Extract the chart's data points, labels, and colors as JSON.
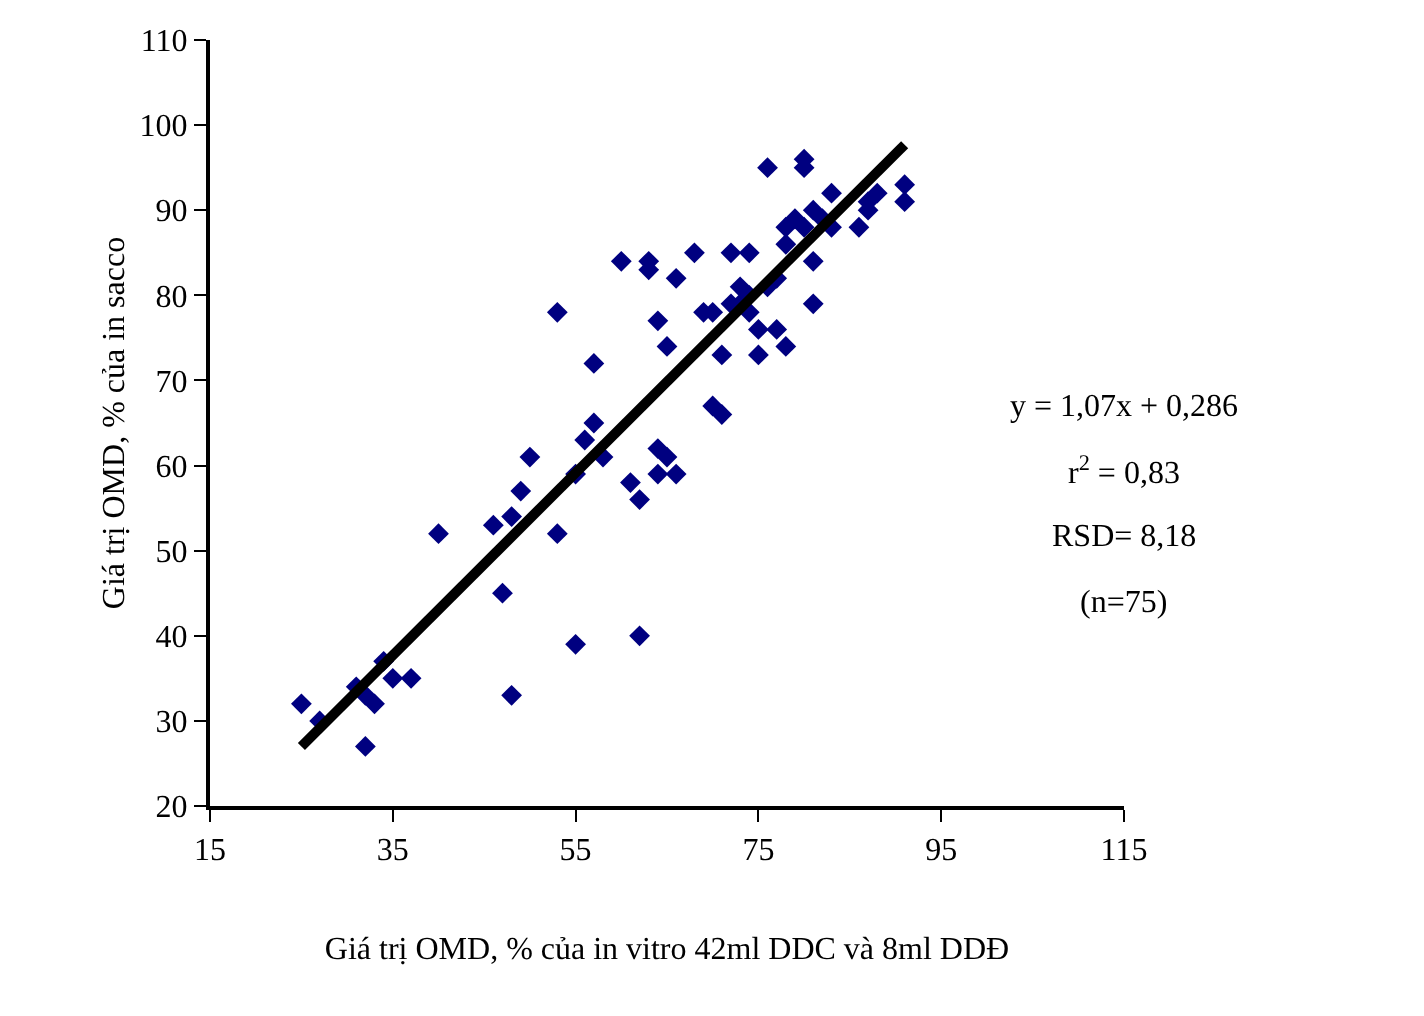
{
  "chart_data": {
    "type": "scatter",
    "xlabel": "Giá trị OMD, % của in vitro 42ml DDC và 8ml DDĐ",
    "ylabel": "Giá trị OMD, % của in sacco",
    "xlim": [
      15,
      115
    ],
    "xticks": [
      15,
      35,
      55,
      75,
      95,
      115
    ],
    "ylim": [
      20,
      110
    ],
    "yticks": [
      20,
      30,
      40,
      50,
      60,
      70,
      80,
      90,
      100,
      110
    ],
    "grid": false,
    "marker": "diamond",
    "series": [
      {
        "color": "#000080",
        "x": [
          25,
          27,
          31,
          32,
          32,
          33,
          34,
          35,
          37,
          40,
          46,
          47,
          48,
          48,
          49,
          50,
          53,
          53,
          55,
          55,
          56,
          57,
          57,
          58,
          60,
          61,
          62,
          62,
          63,
          63,
          64,
          65,
          65,
          64,
          66,
          66,
          68,
          69,
          70,
          71,
          71,
          72,
          72,
          73,
          74,
          74,
          74,
          75,
          75,
          76,
          77,
          77,
          78,
          78,
          78,
          79,
          80,
          80,
          80,
          81,
          81,
          81,
          82,
          83,
          83,
          86,
          87,
          87,
          88,
          91,
          91,
          73,
          64,
          70,
          76
        ],
        "values": [
          32,
          30,
          34,
          33,
          27,
          32,
          37,
          35,
          35,
          52,
          53,
          45,
          54,
          33,
          57,
          61,
          52,
          78,
          59,
          39,
          63,
          72,
          65,
          61,
          84,
          58,
          40,
          56,
          83,
          84,
          77,
          74,
          61,
          62,
          59,
          82,
          85,
          78,
          67,
          73,
          66,
          85,
          79,
          81,
          80,
          78,
          85,
          76,
          73,
          95,
          76,
          82,
          74,
          88,
          86,
          89,
          95,
          96,
          88,
          79,
          84,
          90,
          89,
          88,
          92,
          88,
          90,
          91,
          92,
          91,
          93,
          79,
          59,
          78,
          81
        ]
      },
      {
        "type": "line",
        "color": "#000000",
        "x": [
          25,
          91
        ],
        "values": [
          27.0,
          97.7
        ],
        "marker": "none",
        "line_style": "solid"
      }
    ],
    "annotations": [
      "y = 1,07x + 0,286",
      "r$^{2}$ = 0,83",
      "RSD= 8,18",
      "(n=75)"
    ]
  }
}
